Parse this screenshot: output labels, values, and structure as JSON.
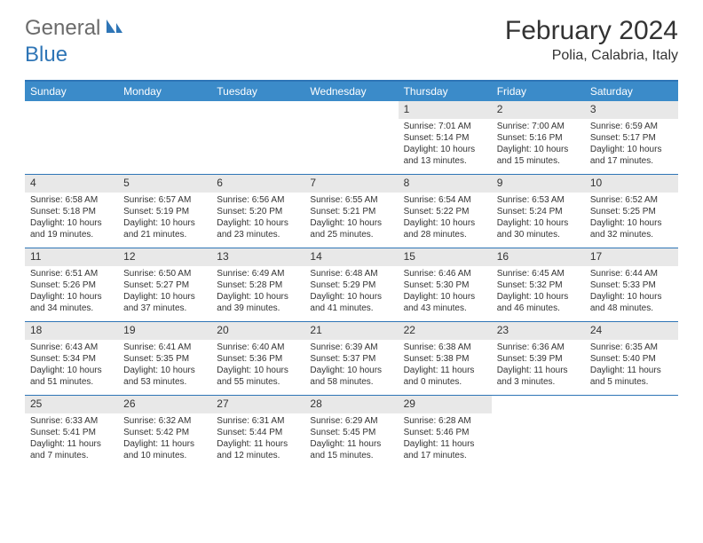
{
  "logo": {
    "part1": "General",
    "part2": "Blue"
  },
  "title": "February 2024",
  "subtitle": "Polia, Calabria, Italy",
  "weekdays": [
    "Sunday",
    "Monday",
    "Tuesday",
    "Wednesday",
    "Thursday",
    "Friday",
    "Saturday"
  ],
  "colors": {
    "header_bar": "#3b8bc9",
    "rule": "#2e75b6",
    "daynum_bg": "#e8e8e8",
    "logo_grey": "#6b6b6b",
    "logo_blue": "#2e75b6"
  },
  "weeks": [
    [
      {
        "n": "",
        "sr": "",
        "ss": "",
        "dl": ""
      },
      {
        "n": "",
        "sr": "",
        "ss": "",
        "dl": ""
      },
      {
        "n": "",
        "sr": "",
        "ss": "",
        "dl": ""
      },
      {
        "n": "",
        "sr": "",
        "ss": "",
        "dl": ""
      },
      {
        "n": "1",
        "sr": "Sunrise: 7:01 AM",
        "ss": "Sunset: 5:14 PM",
        "dl": "Daylight: 10 hours and 13 minutes."
      },
      {
        "n": "2",
        "sr": "Sunrise: 7:00 AM",
        "ss": "Sunset: 5:16 PM",
        "dl": "Daylight: 10 hours and 15 minutes."
      },
      {
        "n": "3",
        "sr": "Sunrise: 6:59 AM",
        "ss": "Sunset: 5:17 PM",
        "dl": "Daylight: 10 hours and 17 minutes."
      }
    ],
    [
      {
        "n": "4",
        "sr": "Sunrise: 6:58 AM",
        "ss": "Sunset: 5:18 PM",
        "dl": "Daylight: 10 hours and 19 minutes."
      },
      {
        "n": "5",
        "sr": "Sunrise: 6:57 AM",
        "ss": "Sunset: 5:19 PM",
        "dl": "Daylight: 10 hours and 21 minutes."
      },
      {
        "n": "6",
        "sr": "Sunrise: 6:56 AM",
        "ss": "Sunset: 5:20 PM",
        "dl": "Daylight: 10 hours and 23 minutes."
      },
      {
        "n": "7",
        "sr": "Sunrise: 6:55 AM",
        "ss": "Sunset: 5:21 PM",
        "dl": "Daylight: 10 hours and 25 minutes."
      },
      {
        "n": "8",
        "sr": "Sunrise: 6:54 AM",
        "ss": "Sunset: 5:22 PM",
        "dl": "Daylight: 10 hours and 28 minutes."
      },
      {
        "n": "9",
        "sr": "Sunrise: 6:53 AM",
        "ss": "Sunset: 5:24 PM",
        "dl": "Daylight: 10 hours and 30 minutes."
      },
      {
        "n": "10",
        "sr": "Sunrise: 6:52 AM",
        "ss": "Sunset: 5:25 PM",
        "dl": "Daylight: 10 hours and 32 minutes."
      }
    ],
    [
      {
        "n": "11",
        "sr": "Sunrise: 6:51 AM",
        "ss": "Sunset: 5:26 PM",
        "dl": "Daylight: 10 hours and 34 minutes."
      },
      {
        "n": "12",
        "sr": "Sunrise: 6:50 AM",
        "ss": "Sunset: 5:27 PM",
        "dl": "Daylight: 10 hours and 37 minutes."
      },
      {
        "n": "13",
        "sr": "Sunrise: 6:49 AM",
        "ss": "Sunset: 5:28 PM",
        "dl": "Daylight: 10 hours and 39 minutes."
      },
      {
        "n": "14",
        "sr": "Sunrise: 6:48 AM",
        "ss": "Sunset: 5:29 PM",
        "dl": "Daylight: 10 hours and 41 minutes."
      },
      {
        "n": "15",
        "sr": "Sunrise: 6:46 AM",
        "ss": "Sunset: 5:30 PM",
        "dl": "Daylight: 10 hours and 43 minutes."
      },
      {
        "n": "16",
        "sr": "Sunrise: 6:45 AM",
        "ss": "Sunset: 5:32 PM",
        "dl": "Daylight: 10 hours and 46 minutes."
      },
      {
        "n": "17",
        "sr": "Sunrise: 6:44 AM",
        "ss": "Sunset: 5:33 PM",
        "dl": "Daylight: 10 hours and 48 minutes."
      }
    ],
    [
      {
        "n": "18",
        "sr": "Sunrise: 6:43 AM",
        "ss": "Sunset: 5:34 PM",
        "dl": "Daylight: 10 hours and 51 minutes."
      },
      {
        "n": "19",
        "sr": "Sunrise: 6:41 AM",
        "ss": "Sunset: 5:35 PM",
        "dl": "Daylight: 10 hours and 53 minutes."
      },
      {
        "n": "20",
        "sr": "Sunrise: 6:40 AM",
        "ss": "Sunset: 5:36 PM",
        "dl": "Daylight: 10 hours and 55 minutes."
      },
      {
        "n": "21",
        "sr": "Sunrise: 6:39 AM",
        "ss": "Sunset: 5:37 PM",
        "dl": "Daylight: 10 hours and 58 minutes."
      },
      {
        "n": "22",
        "sr": "Sunrise: 6:38 AM",
        "ss": "Sunset: 5:38 PM",
        "dl": "Daylight: 11 hours and 0 minutes."
      },
      {
        "n": "23",
        "sr": "Sunrise: 6:36 AM",
        "ss": "Sunset: 5:39 PM",
        "dl": "Daylight: 11 hours and 3 minutes."
      },
      {
        "n": "24",
        "sr": "Sunrise: 6:35 AM",
        "ss": "Sunset: 5:40 PM",
        "dl": "Daylight: 11 hours and 5 minutes."
      }
    ],
    [
      {
        "n": "25",
        "sr": "Sunrise: 6:33 AM",
        "ss": "Sunset: 5:41 PM",
        "dl": "Daylight: 11 hours and 7 minutes."
      },
      {
        "n": "26",
        "sr": "Sunrise: 6:32 AM",
        "ss": "Sunset: 5:42 PM",
        "dl": "Daylight: 11 hours and 10 minutes."
      },
      {
        "n": "27",
        "sr": "Sunrise: 6:31 AM",
        "ss": "Sunset: 5:44 PM",
        "dl": "Daylight: 11 hours and 12 minutes."
      },
      {
        "n": "28",
        "sr": "Sunrise: 6:29 AM",
        "ss": "Sunset: 5:45 PM",
        "dl": "Daylight: 11 hours and 15 minutes."
      },
      {
        "n": "29",
        "sr": "Sunrise: 6:28 AM",
        "ss": "Sunset: 5:46 PM",
        "dl": "Daylight: 11 hours and 17 minutes."
      },
      {
        "n": "",
        "sr": "",
        "ss": "",
        "dl": ""
      },
      {
        "n": "",
        "sr": "",
        "ss": "",
        "dl": ""
      }
    ]
  ]
}
